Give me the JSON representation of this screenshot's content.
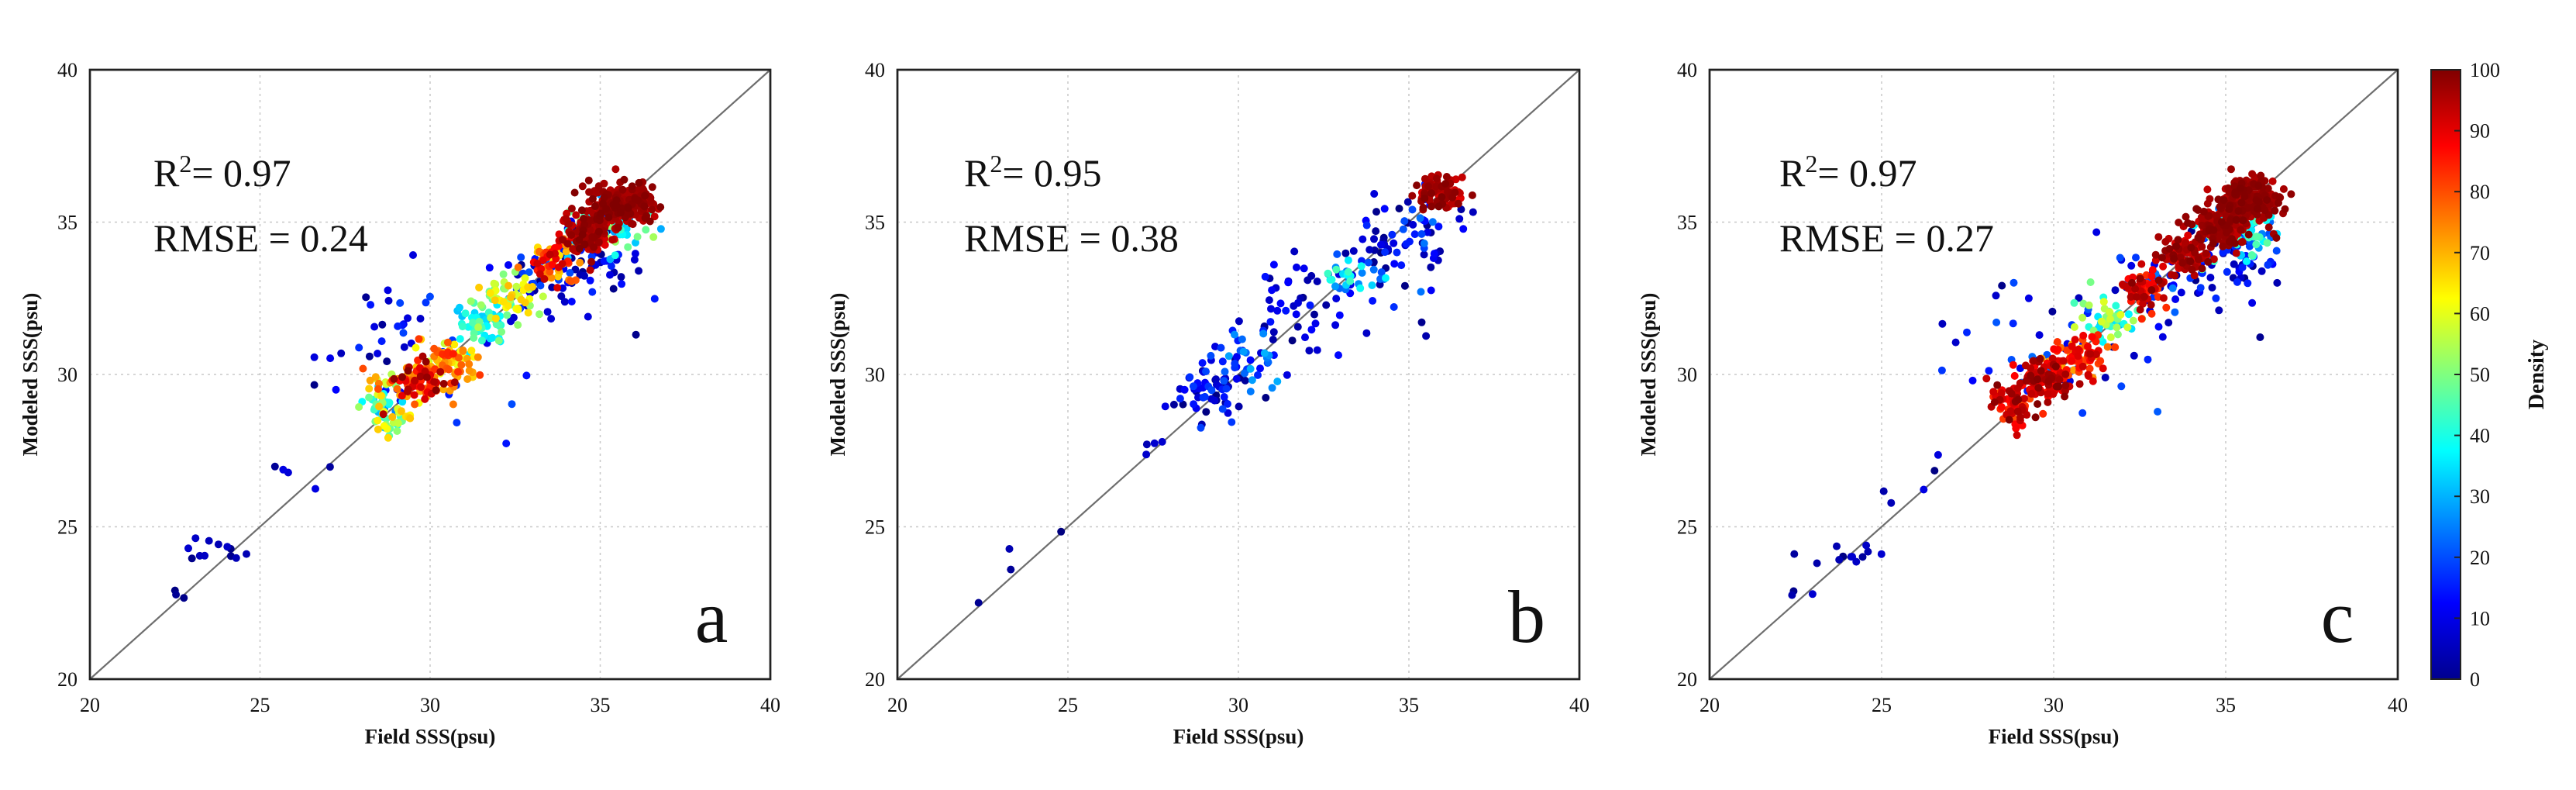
{
  "chart_data": [
    {
      "type": "scatter",
      "panel": "a",
      "xlabel": "Field SSS(psu)",
      "ylabel": "Modeled SSS(psu)",
      "xlim": [
        20,
        40
      ],
      "ylim": [
        20,
        40
      ],
      "xticks": [
        "20",
        "25",
        "30",
        "35",
        "40"
      ],
      "yticks": [
        "20",
        "25",
        "30",
        "35",
        "40"
      ],
      "stat_r2_prefix": "R",
      "stat_r2_sup": "2",
      "stat_r2_value": "= 0.97",
      "stat_rmse": "RMSE = 0.24",
      "identity_line": [
        [
          20,
          20
        ],
        [
          40,
          40
        ]
      ],
      "grid": true,
      "clusters": [
        {
          "cx": 22.6,
          "cy": 22.8,
          "sx": 0.15,
          "sy": 0.25,
          "n": 3,
          "d": [
            0,
            8
          ]
        },
        {
          "cx": 23.9,
          "cy": 24.1,
          "sx": 0.6,
          "sy": 0.25,
          "n": 12,
          "d": [
            0,
            8
          ]
        },
        {
          "cx": 26.2,
          "cy": 26.9,
          "sx": 0.8,
          "sy": 0.6,
          "n": 5,
          "d": [
            0,
            10
          ]
        },
        {
          "cx": 28.7,
          "cy": 28.9,
          "sx": 0.35,
          "sy": 0.45,
          "n": 70,
          "d": [
            25,
            70
          ]
        },
        {
          "cx": 29.6,
          "cy": 29.7,
          "sx": 0.5,
          "sy": 0.35,
          "n": 90,
          "d": [
            70,
            100
          ]
        },
        {
          "cx": 30.5,
          "cy": 30.4,
          "sx": 0.45,
          "sy": 0.35,
          "n": 70,
          "d": [
            55,
            85
          ]
        },
        {
          "cx": 31.5,
          "cy": 31.6,
          "sx": 0.4,
          "sy": 0.4,
          "n": 50,
          "d": [
            30,
            55
          ]
        },
        {
          "cx": 32.3,
          "cy": 32.5,
          "sx": 0.45,
          "sy": 0.4,
          "n": 50,
          "d": [
            45,
            70
          ]
        },
        {
          "cx": 29.8,
          "cy": 30.6,
          "sx": 1.5,
          "sy": 1.3,
          "n": 45,
          "d": [
            0,
            20
          ]
        },
        {
          "cx": 33.2,
          "cy": 33.0,
          "sx": 0.6,
          "sy": 0.7,
          "n": 40,
          "d": [
            0,
            22
          ]
        },
        {
          "cx": 33.6,
          "cy": 33.7,
          "sx": 0.4,
          "sy": 0.35,
          "n": 60,
          "d": [
            60,
            95
          ]
        },
        {
          "cx": 34.6,
          "cy": 34.6,
          "sx": 0.4,
          "sy": 0.35,
          "n": 110,
          "d": [
            90,
            100
          ]
        },
        {
          "cx": 35.6,
          "cy": 35.6,
          "sx": 0.45,
          "sy": 0.35,
          "n": 220,
          "d": [
            93,
            100
          ]
        },
        {
          "cx": 35.3,
          "cy": 34.8,
          "sx": 0.6,
          "sy": 0.45,
          "n": 60,
          "d": [
            25,
            55
          ]
        },
        {
          "cx": 34.9,
          "cy": 33.7,
          "sx": 0.7,
          "sy": 0.8,
          "n": 50,
          "d": [
            0,
            18
          ]
        },
        {
          "cx": 28.5,
          "cy": 32.6,
          "sx": 0.3,
          "sy": 0.3,
          "n": 2,
          "d": [
            0,
            8
          ]
        },
        {
          "cx": 36.0,
          "cy": 31.3,
          "sx": 0.05,
          "sy": 0.05,
          "n": 1,
          "d": [
            0,
            5
          ]
        }
      ]
    },
    {
      "type": "scatter",
      "panel": "b",
      "xlabel": "Field SSS(psu)",
      "ylabel": "Modeled SSS(psu)",
      "xlim": [
        20,
        40
      ],
      "ylim": [
        20,
        40
      ],
      "xticks": [
        "20",
        "25",
        "30",
        "35",
        "40"
      ],
      "yticks": [
        "20",
        "25",
        "30",
        "35",
        "40"
      ],
      "stat_r2_prefix": "R",
      "stat_r2_sup": "2",
      "stat_r2_value": "= 0.95",
      "stat_rmse": "RMSE = 0.38",
      "identity_line": [
        [
          20,
          20
        ],
        [
          40,
          40
        ]
      ],
      "grid": true,
      "clusters": [
        {
          "cx": 22.4,
          "cy": 22.5,
          "sx": 0.05,
          "sy": 0.05,
          "n": 1,
          "d": [
            0,
            5
          ]
        },
        {
          "cx": 23.2,
          "cy": 24.1,
          "sx": 0.1,
          "sy": 0.3,
          "n": 2,
          "d": [
            0,
            5
          ]
        },
        {
          "cx": 24.8,
          "cy": 24.8,
          "sx": 0.05,
          "sy": 0.05,
          "n": 1,
          "d": [
            0,
            5
          ]
        },
        {
          "cx": 27.6,
          "cy": 27.8,
          "sx": 0.3,
          "sy": 0.5,
          "n": 4,
          "d": [
            0,
            8
          ]
        },
        {
          "cx": 29.2,
          "cy": 29.5,
          "sx": 0.6,
          "sy": 0.6,
          "n": 60,
          "d": [
            0,
            20
          ]
        },
        {
          "cx": 30.3,
          "cy": 30.4,
          "sx": 0.5,
          "sy": 0.5,
          "n": 35,
          "d": [
            10,
            30
          ]
        },
        {
          "cx": 31.8,
          "cy": 32.2,
          "sx": 0.9,
          "sy": 0.9,
          "n": 50,
          "d": [
            0,
            15
          ]
        },
        {
          "cx": 33.3,
          "cy": 33.3,
          "sx": 0.4,
          "sy": 0.35,
          "n": 30,
          "d": [
            20,
            45
          ]
        },
        {
          "cx": 34.3,
          "cy": 34.2,
          "sx": 0.7,
          "sy": 0.8,
          "n": 40,
          "d": [
            0,
            20
          ]
        },
        {
          "cx": 35.9,
          "cy": 35.9,
          "sx": 0.3,
          "sy": 0.3,
          "n": 90,
          "d": [
            90,
            100
          ]
        },
        {
          "cx": 35.6,
          "cy": 34.6,
          "sx": 0.6,
          "sy": 0.9,
          "n": 35,
          "d": [
            0,
            25
          ]
        },
        {
          "cx": 35.5,
          "cy": 31.4,
          "sx": 0.2,
          "sy": 0.4,
          "n": 2,
          "d": [
            0,
            5
          ]
        }
      ]
    },
    {
      "type": "scatter",
      "panel": "c",
      "xlabel": "Field SSS(psu)",
      "ylabel": "Modeled SSS(psu)",
      "xlim": [
        20,
        40
      ],
      "ylim": [
        20,
        40
      ],
      "xticks": [
        "20",
        "25",
        "30",
        "35",
        "40"
      ],
      "yticks": [
        "20",
        "25",
        "30",
        "35",
        "40"
      ],
      "stat_r2_prefix": "R",
      "stat_r2_sup": "2",
      "stat_r2_value": "= 0.97",
      "stat_rmse": "RMSE = 0.27",
      "identity_line": [
        [
          20,
          20
        ],
        [
          40,
          40
        ]
      ],
      "grid": true,
      "clusters": [
        {
          "cx": 22.6,
          "cy": 22.8,
          "sx": 0.15,
          "sy": 0.25,
          "n": 3,
          "d": [
            0,
            8
          ]
        },
        {
          "cx": 23.9,
          "cy": 24.1,
          "sx": 0.6,
          "sy": 0.25,
          "n": 12,
          "d": [
            0,
            8
          ]
        },
        {
          "cx": 26.2,
          "cy": 26.9,
          "sx": 0.8,
          "sy": 0.6,
          "n": 5,
          "d": [
            0,
            10
          ]
        },
        {
          "cx": 28.8,
          "cy": 29.0,
          "sx": 0.3,
          "sy": 0.35,
          "n": 70,
          "d": [
            80,
            100
          ]
        },
        {
          "cx": 29.8,
          "cy": 29.8,
          "sx": 0.45,
          "sy": 0.35,
          "n": 100,
          "d": [
            85,
            100
          ]
        },
        {
          "cx": 30.7,
          "cy": 30.6,
          "sx": 0.45,
          "sy": 0.35,
          "n": 80,
          "d": [
            70,
            95
          ]
        },
        {
          "cx": 31.6,
          "cy": 31.8,
          "sx": 0.45,
          "sy": 0.4,
          "n": 50,
          "d": [
            30,
            60
          ]
        },
        {
          "cx": 32.6,
          "cy": 32.8,
          "sx": 0.35,
          "sy": 0.3,
          "n": 60,
          "d": [
            80,
            100
          ]
        },
        {
          "cx": 29.8,
          "cy": 30.8,
          "sx": 1.5,
          "sy": 1.3,
          "n": 45,
          "d": [
            0,
            25
          ]
        },
        {
          "cx": 33.1,
          "cy": 33.0,
          "sx": 0.6,
          "sy": 0.7,
          "n": 40,
          "d": [
            0,
            25
          ]
        },
        {
          "cx": 33.8,
          "cy": 33.9,
          "sx": 0.35,
          "sy": 0.35,
          "n": 80,
          "d": [
            90,
            100
          ]
        },
        {
          "cx": 34.8,
          "cy": 34.9,
          "sx": 0.45,
          "sy": 0.4,
          "n": 160,
          "d": [
            92,
            100
          ]
        },
        {
          "cx": 35.7,
          "cy": 35.8,
          "sx": 0.4,
          "sy": 0.35,
          "n": 200,
          "d": [
            94,
            100
          ]
        },
        {
          "cx": 35.4,
          "cy": 34.6,
          "sx": 0.6,
          "sy": 0.5,
          "n": 80,
          "d": [
            15,
            50
          ]
        },
        {
          "cx": 35.0,
          "cy": 33.6,
          "sx": 0.7,
          "sy": 0.8,
          "n": 50,
          "d": [
            0,
            18
          ]
        },
        {
          "cx": 28.5,
          "cy": 32.6,
          "sx": 0.3,
          "sy": 0.3,
          "n": 2,
          "d": [
            0,
            8
          ]
        },
        {
          "cx": 36.0,
          "cy": 31.3,
          "sx": 0.05,
          "sy": 0.05,
          "n": 1,
          "d": [
            0,
            5
          ]
        }
      ]
    }
  ],
  "colorbar": {
    "title": "Density",
    "min": 0,
    "max": 100,
    "ticks": [
      "0",
      "10",
      "20",
      "30",
      "40",
      "50",
      "60",
      "70",
      "80",
      "90",
      "100"
    ],
    "colormap": "jet"
  }
}
